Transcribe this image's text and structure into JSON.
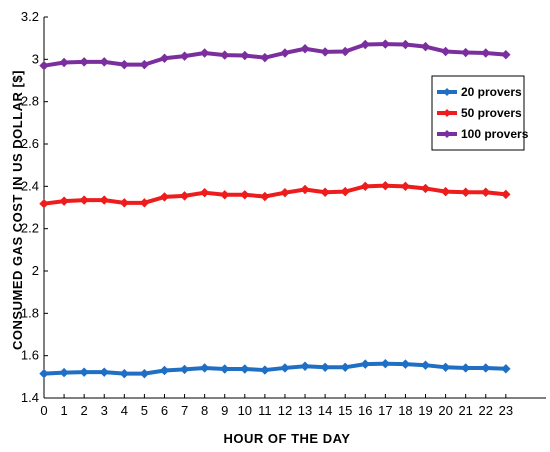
{
  "chart_data": {
    "type": "line",
    "xlabel": "HOUR OF THE DAY",
    "ylabel": "CONSUMED GAS COST IN US DOLLAR [$]",
    "x": [
      0,
      1,
      2,
      3,
      4,
      5,
      6,
      7,
      8,
      9,
      10,
      11,
      12,
      13,
      14,
      15,
      16,
      17,
      18,
      19,
      20,
      21,
      22,
      23
    ],
    "xlim": [
      0,
      25
    ],
    "ylim": [
      1.4,
      3.2
    ],
    "y_ticks": [
      "1.4",
      "1.6",
      "1.8",
      "2",
      "2.2",
      "2.4",
      "2.6",
      "2.8",
      "3",
      "3.2"
    ],
    "x_ticks": [
      "0",
      "1",
      "2",
      "3",
      "4",
      "5",
      "6",
      "7",
      "8",
      "9",
      "10",
      "11",
      "12",
      "13",
      "14",
      "15",
      "16",
      "17",
      "18",
      "19",
      "20",
      "21",
      "22",
      "23"
    ],
    "grid": false,
    "legend_position": "top-right",
    "series": [
      {
        "name": "20 provers",
        "color": "#1f6fc5",
        "marker": "diamond",
        "values": [
          1.515,
          1.52,
          1.522,
          1.522,
          1.515,
          1.515,
          1.53,
          1.535,
          1.542,
          1.537,
          1.537,
          1.532,
          1.542,
          1.55,
          1.545,
          1.545,
          1.56,
          1.562,
          1.56,
          1.555,
          1.545,
          1.542,
          1.542,
          1.538
        ]
      },
      {
        "name": "50 provers",
        "color": "#ee1c1c",
        "marker": "diamond",
        "values": [
          2.318,
          2.33,
          2.335,
          2.335,
          2.322,
          2.322,
          2.35,
          2.355,
          2.37,
          2.36,
          2.36,
          2.352,
          2.37,
          2.385,
          2.372,
          2.375,
          2.4,
          2.403,
          2.4,
          2.39,
          2.375,
          2.372,
          2.372,
          2.362
        ]
      },
      {
        "name": "100 provers",
        "color": "#7b2f9e",
        "marker": "diamond",
        "values": [
          2.97,
          2.985,
          2.988,
          2.988,
          2.975,
          2.975,
          3.005,
          3.015,
          3.03,
          3.02,
          3.018,
          3.008,
          3.03,
          3.05,
          3.035,
          3.037,
          3.07,
          3.072,
          3.07,
          3.06,
          3.037,
          3.032,
          3.03,
          3.022
        ]
      }
    ]
  }
}
